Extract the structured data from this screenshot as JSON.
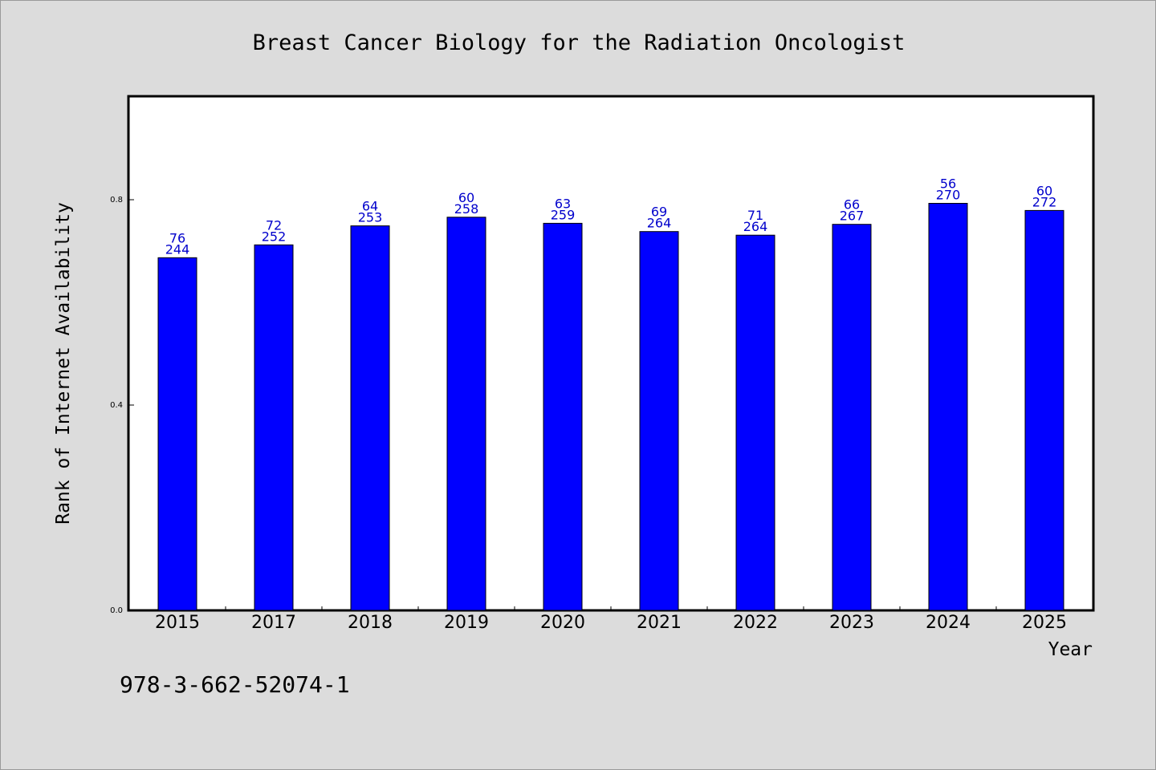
{
  "chart_data": {
    "type": "bar",
    "title": "Breast Cancer Biology for the Radiation Oncologist",
    "xlabel": "Year",
    "ylabel": "Rank of Internet Availability",
    "categories": [
      "2015",
      "2017",
      "2018",
      "2019",
      "2020",
      "2021",
      "2022",
      "2023",
      "2024",
      "2025"
    ],
    "values": [
      0.687,
      0.712,
      0.749,
      0.766,
      0.754,
      0.738,
      0.731,
      0.752,
      0.793,
      0.779
    ],
    "label_top": [
      "76",
      "72",
      "64",
      "60",
      "63",
      "69",
      "71",
      "66",
      "56",
      "60"
    ],
    "label_bottom": [
      "244",
      "252",
      "253",
      "258",
      "259",
      "264",
      "264",
      "267",
      "270",
      "272"
    ],
    "yticks": [
      "0.0",
      "0.4",
      "0.8"
    ],
    "ylim": [
      0,
      1.0
    ],
    "grid": false,
    "legend": "none",
    "bar_color": "#0000ff",
    "label_color": "#0000cc",
    "plot_background": "#ffffff",
    "page_background": "#dcdcdc"
  },
  "footer": {
    "isbn": "978-3-662-52074-1"
  }
}
